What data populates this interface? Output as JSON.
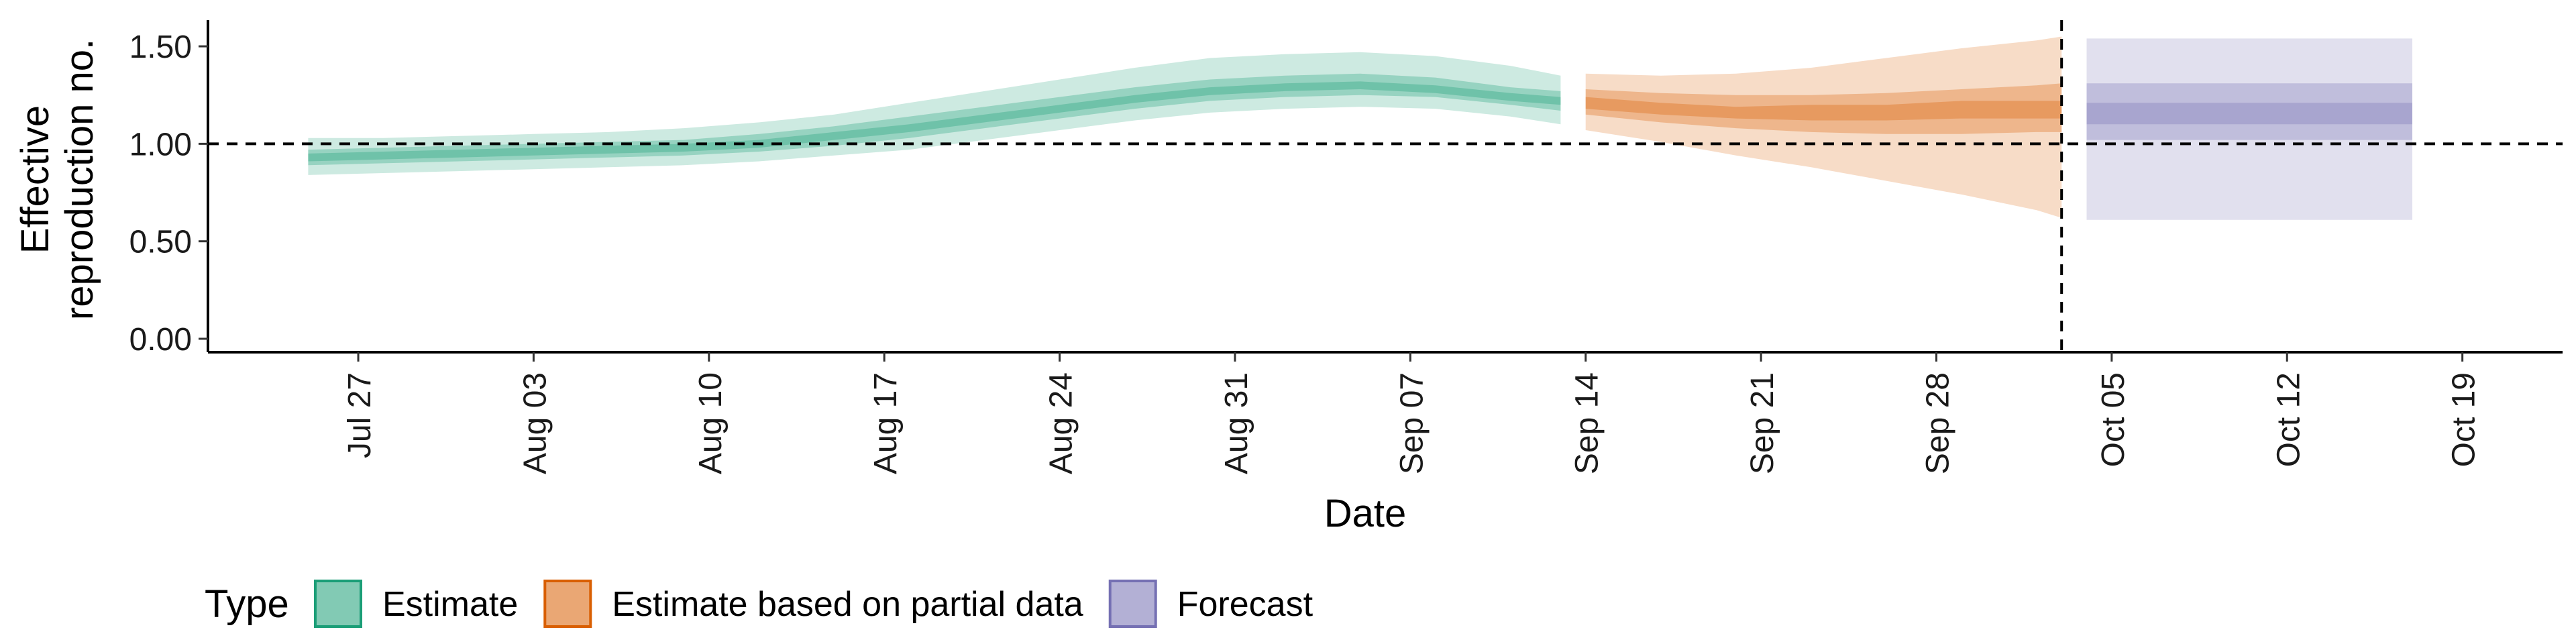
{
  "chart_data": {
    "type": "area",
    "title": "",
    "xlabel": "Date",
    "ylabel": [
      "Effective",
      "reproduction no."
    ],
    "ylim": [
      0,
      1.6
    ],
    "y_ticks": [
      0.0,
      0.5,
      1.0,
      1.5
    ],
    "y_tick_labels": [
      "0.00",
      "0.50",
      "1.00",
      "1.50"
    ],
    "xlim": [
      "2021-07-21",
      "2021-10-23"
    ],
    "x_ticks": [
      "2021-07-27",
      "2021-08-03",
      "2021-08-10",
      "2021-08-17",
      "2021-08-24",
      "2021-08-31",
      "2021-09-07",
      "2021-09-14",
      "2021-09-21",
      "2021-09-28",
      "2021-10-05",
      "2021-10-12",
      "2021-10-19"
    ],
    "x_tick_labels": [
      "Jul 27",
      "Aug 03",
      "Aug 10",
      "Aug 17",
      "Aug 24",
      "Aug 31",
      "Sep 07",
      "Sep 14",
      "Sep 21",
      "Sep 28",
      "Oct 05",
      "Oct 12",
      "Oct 19"
    ],
    "reference_lines": {
      "horizontal_y": 1.0,
      "vertical_x": "2021-10-03"
    },
    "legend": {
      "title": "Type",
      "position": "bottom",
      "entries": [
        {
          "label": "Estimate",
          "color": "#1b9e77"
        },
        {
          "label": "Estimate based on partial data",
          "color": "#d95f02"
        },
        {
          "label": "Forecast",
          "color": "#7570b3"
        }
      ]
    },
    "series": [
      {
        "name": "Estimate",
        "color": "#1b9e77",
        "x": [
          "2021-07-25",
          "2021-07-28",
          "2021-07-31",
          "2021-08-03",
          "2021-08-06",
          "2021-08-09",
          "2021-08-12",
          "2021-08-15",
          "2021-08-18",
          "2021-08-21",
          "2021-08-24",
          "2021-08-27",
          "2021-08-30",
          "2021-09-02",
          "2021-09-05",
          "2021-09-08",
          "2021-09-11",
          "2021-09-13"
        ],
        "median": [
          0.93,
          0.94,
          0.95,
          0.96,
          0.97,
          0.98,
          1.0,
          1.04,
          1.08,
          1.13,
          1.18,
          1.23,
          1.27,
          1.29,
          1.3,
          1.28,
          1.24,
          1.22
        ],
        "lower_90": [
          0.84,
          0.85,
          0.86,
          0.87,
          0.88,
          0.89,
          0.91,
          0.94,
          0.97,
          1.02,
          1.07,
          1.12,
          1.16,
          1.18,
          1.19,
          1.18,
          1.14,
          1.1
        ],
        "upper_90": [
          1.03,
          1.03,
          1.04,
          1.05,
          1.06,
          1.08,
          1.11,
          1.15,
          1.21,
          1.27,
          1.33,
          1.39,
          1.44,
          1.46,
          1.47,
          1.45,
          1.4,
          1.35
        ],
        "lower_50": [
          0.89,
          0.9,
          0.91,
          0.92,
          0.93,
          0.94,
          0.96,
          0.99,
          1.03,
          1.08,
          1.13,
          1.18,
          1.22,
          1.24,
          1.25,
          1.24,
          1.2,
          1.17
        ],
        "upper_50": [
          0.97,
          0.98,
          0.99,
          1.0,
          1.01,
          1.02,
          1.05,
          1.09,
          1.14,
          1.19,
          1.24,
          1.29,
          1.33,
          1.35,
          1.36,
          1.34,
          1.29,
          1.27
        ],
        "lower_20": [
          0.91,
          0.92,
          0.93,
          0.94,
          0.95,
          0.96,
          0.98,
          1.02,
          1.06,
          1.11,
          1.16,
          1.21,
          1.25,
          1.27,
          1.28,
          1.26,
          1.22,
          1.2
        ],
        "upper_20": [
          0.95,
          0.96,
          0.97,
          0.98,
          0.99,
          1.0,
          1.02,
          1.06,
          1.1,
          1.15,
          1.2,
          1.25,
          1.29,
          1.31,
          1.32,
          1.3,
          1.26,
          1.24
        ]
      },
      {
        "name": "Estimate based on partial data",
        "color": "#d95f02",
        "x": [
          "2021-09-14",
          "2021-09-17",
          "2021-09-20",
          "2021-09-23",
          "2021-09-26",
          "2021-09-29",
          "2021-10-02",
          "2021-10-03"
        ],
        "median": [
          1.21,
          1.18,
          1.16,
          1.16,
          1.16,
          1.17,
          1.17,
          1.17
        ],
        "lower_90": [
          1.07,
          1.01,
          0.94,
          0.88,
          0.81,
          0.74,
          0.66,
          0.62
        ],
        "upper_90": [
          1.36,
          1.35,
          1.36,
          1.39,
          1.44,
          1.49,
          1.53,
          1.55
        ],
        "lower_50": [
          1.15,
          1.11,
          1.08,
          1.06,
          1.05,
          1.05,
          1.06,
          1.06
        ],
        "upper_50": [
          1.28,
          1.26,
          1.25,
          1.25,
          1.26,
          1.28,
          1.3,
          1.31
        ],
        "lower_20": [
          1.18,
          1.15,
          1.13,
          1.12,
          1.12,
          1.13,
          1.13,
          1.13
        ],
        "upper_20": [
          1.24,
          1.21,
          1.19,
          1.2,
          1.2,
          1.22,
          1.22,
          1.22
        ]
      },
      {
        "name": "Forecast",
        "color": "#7570b3",
        "x": [
          "2021-10-04",
          "2021-10-17"
        ],
        "median": [
          1.17,
          1.17
        ],
        "lower_90": [
          0.61,
          0.61
        ],
        "upper_90": [
          1.54,
          1.54
        ],
        "lower_50": [
          1.02,
          1.02
        ],
        "upper_50": [
          1.31,
          1.31
        ],
        "lower_20": [
          1.1,
          1.1
        ],
        "upper_20": [
          1.21,
          1.21
        ]
      }
    ]
  }
}
